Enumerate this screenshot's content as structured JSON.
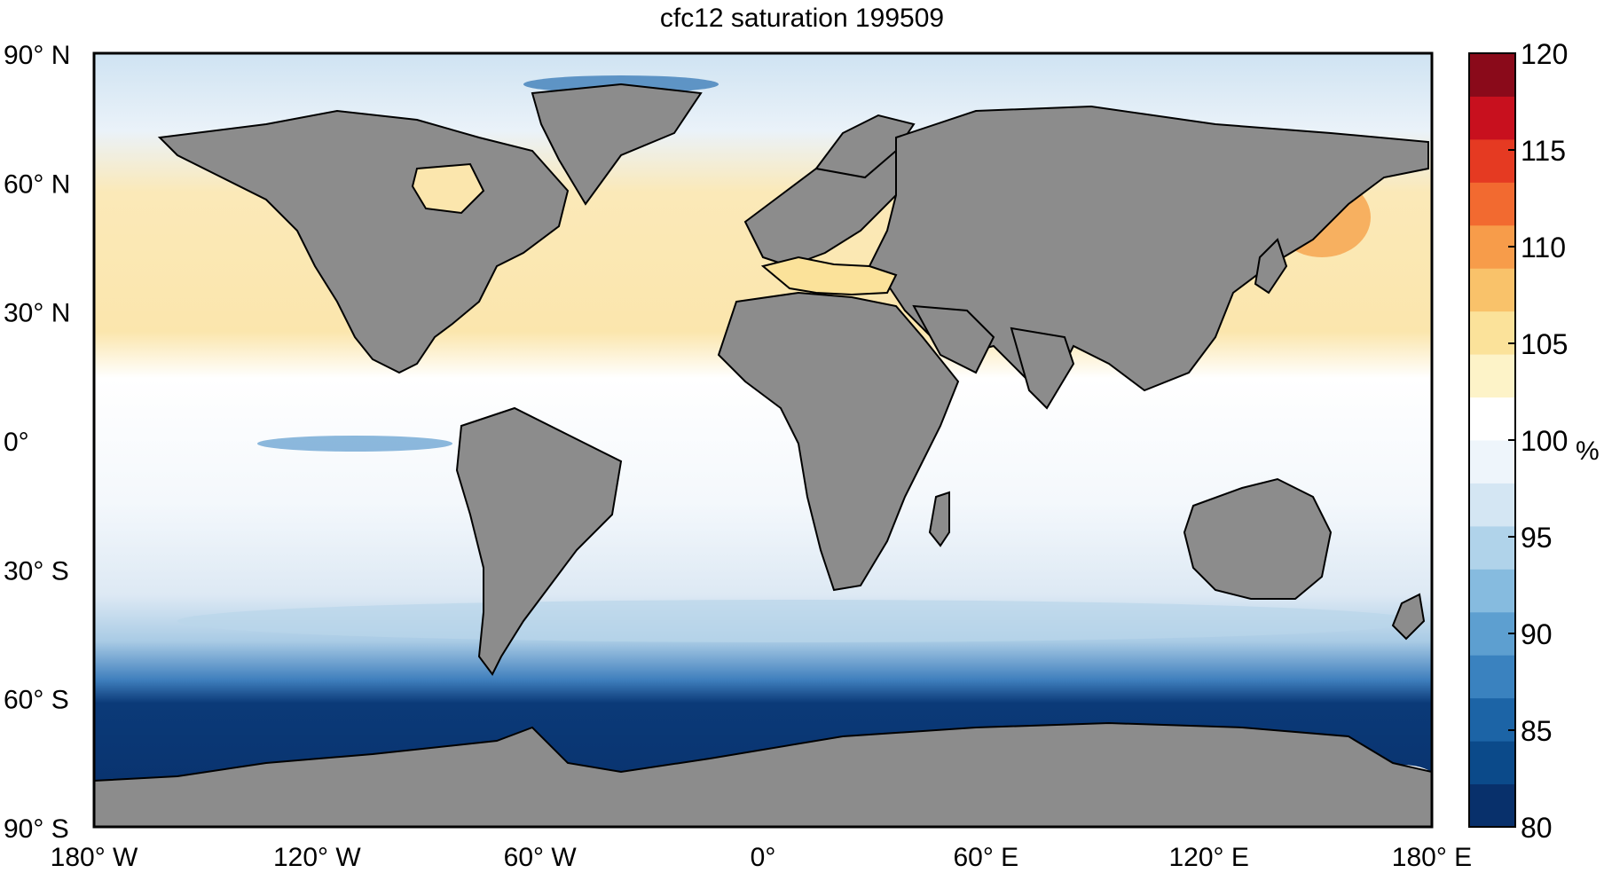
{
  "title": "cfc12 saturation 199509",
  "lat_ticks": [
    {
      "value": 90,
      "text": "90",
      "hemi": "N"
    },
    {
      "value": 60,
      "text": "60",
      "hemi": "N"
    },
    {
      "value": 30,
      "text": "30",
      "hemi": "N"
    },
    {
      "value": 0,
      "text": "0",
      "hemi": ""
    },
    {
      "value": -30,
      "text": "30",
      "hemi": "S"
    },
    {
      "value": -60,
      "text": "60",
      "hemi": "S"
    },
    {
      "value": -90,
      "text": "90",
      "hemi": "S"
    }
  ],
  "lon_ticks": [
    {
      "value": -180,
      "text": "180",
      "hemi": "W"
    },
    {
      "value": -120,
      "text": "120",
      "hemi": "W"
    },
    {
      "value": -60,
      "text": "60",
      "hemi": "W"
    },
    {
      "value": 0,
      "text": "0",
      "hemi": ""
    },
    {
      "value": 60,
      "text": "60",
      "hemi": "E"
    },
    {
      "value": 120,
      "text": "120",
      "hemi": "E"
    },
    {
      "value": 180,
      "text": "180",
      "hemi": "E"
    }
  ],
  "degree_symbol": "°",
  "colorbar": {
    "min": 80,
    "max": 120,
    "ticks": [
      "80",
      "85",
      "90",
      "95",
      "100",
      "105",
      "110",
      "115",
      "120"
    ],
    "unit": "%",
    "colors": [
      "#08306b",
      "#0b4a8a",
      "#1c64a6",
      "#3a82bf",
      "#5d9fd0",
      "#86bbdf",
      "#b0d3ea",
      "#d4e6f3",
      "#eef5fb",
      "#ffffff",
      "#fdf3c8",
      "#fbe29a",
      "#f9c26a",
      "#f79c4a",
      "#f26a30",
      "#e53a22",
      "#c8101e",
      "#8a0a1a"
    ]
  },
  "chart_data": {
    "type": "heatmap",
    "title": "cfc12 saturation 199509",
    "xlabel": "",
    "ylabel": "",
    "xlim": [
      -180,
      180
    ],
    "ylim": [
      -90,
      90
    ],
    "value_range": [
      80,
      120
    ],
    "unit": "%",
    "land_color": "#8c8c8c",
    "ocean_regions": [
      {
        "region": "Southern Ocean south of 55S",
        "value": 82
      },
      {
        "region": "Southern Ocean 40S-55S",
        "value": 92
      },
      {
        "region": "South Pacific / South Atlantic / Indian subtropics",
        "value": 98
      },
      {
        "region": "Equatorial oceans",
        "value": 99
      },
      {
        "region": "North Pacific 20N-60N",
        "value": 103
      },
      {
        "region": "North Atlantic subtropics",
        "value": 101
      },
      {
        "region": "Mediterranean Sea",
        "value": 104
      },
      {
        "region": "Sea of Okhotsk",
        "value": 108
      },
      {
        "region": "Arctic Ocean margins",
        "value": 90
      },
      {
        "region": "Hudson Bay",
        "value": 103
      }
    ]
  }
}
